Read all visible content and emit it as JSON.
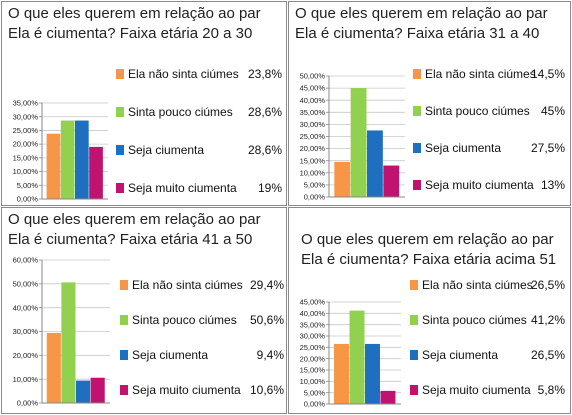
{
  "colors": {
    "ela_nao_sinta": "#f79646",
    "sinta_pouco": "#92d050",
    "seja_ciumenta": "#1f6fc0",
    "seja_muito": "#c0136f",
    "grid": "#c8c8c8",
    "axis": "#888888"
  },
  "chart_data": [
    {
      "type": "bar",
      "title": "O que eles querem em relação ao par\nEla é ciumenta? Faixa etária 20 a 30",
      "ylim": [
        0,
        35
      ],
      "yticks": [
        "0,00%",
        "5,00%",
        "10,00%",
        "15,00%",
        "20,00%",
        "25,00%",
        "30,00%",
        "35,00%"
      ],
      "grid": true,
      "legend_position": "right",
      "series": [
        {
          "name": "Ela não sinta ciúmes",
          "values": [
            23.8
          ],
          "label": "23,8%"
        },
        {
          "name": "Sinta pouco ciúmes",
          "values": [
            28.6
          ],
          "label": "28,6%"
        },
        {
          "name": "Seja ciumenta",
          "values": [
            28.6
          ],
          "label": "28,6%"
        },
        {
          "name": "Seja muito ciumenta",
          "values": [
            19
          ],
          "label": "19%"
        }
      ]
    },
    {
      "type": "bar",
      "title": "O que eles querem em relação ao par\nEla é ciumenta? Faixa etária 31 a 40",
      "ylim": [
        0,
        50
      ],
      "yticks": [
        "0,00%",
        "5,00%",
        "10,00%",
        "15,00%",
        "20,00%",
        "25,00%",
        "30,00%",
        "35,00%",
        "40,00%",
        "45,00%",
        "50,00%"
      ],
      "grid": true,
      "legend_position": "right",
      "series": [
        {
          "name": "Ela não sinta ciúmes",
          "values": [
            14.5
          ],
          "label": "14,5%"
        },
        {
          "name": "Sinta pouco ciúmes",
          "values": [
            45
          ],
          "label": "45%"
        },
        {
          "name": "Seja ciumenta",
          "values": [
            27.5
          ],
          "label": "27,5%"
        },
        {
          "name": "Seja muito ciumenta",
          "values": [
            13
          ],
          "label": "13%"
        }
      ]
    },
    {
      "type": "bar",
      "title": "O que eles querem em relação ao par\nEla é ciumenta? Faixa etária 41 a 50",
      "ylim": [
        0,
        60
      ],
      "yticks": [
        "0,00%",
        "10,00%",
        "20,00%",
        "30,00%",
        "40,00%",
        "50,00%",
        "60,00%"
      ],
      "grid": true,
      "legend_position": "right",
      "series": [
        {
          "name": "Ela não sinta ciúmes",
          "values": [
            29.4
          ],
          "label": "29,4%"
        },
        {
          "name": "Sinta pouco ciúmes",
          "values": [
            50.6
          ],
          "label": "50,6%"
        },
        {
          "name": "Seja ciumenta",
          "values": [
            9.4
          ],
          "label": "9,4%"
        },
        {
          "name": "Seja muito ciumenta",
          "values": [
            10.6
          ],
          "label": "10,6%"
        }
      ]
    },
    {
      "type": "bar",
      "title": "O que eles querem em relação ao par\nEla é ciumenta? Faixa etária acima 51",
      "ylim": [
        0,
        45
      ],
      "yticks": [
        "0,00%",
        "5,00%",
        "10,00%",
        "15,00%",
        "20,00%",
        "25,00%",
        "30,00%",
        "35,00%",
        "40,00%",
        "45,00%"
      ],
      "grid": true,
      "legend_position": "right",
      "series": [
        {
          "name": "Ela não sinta ciúmes",
          "values": [
            26.5
          ],
          "label": "26,5%"
        },
        {
          "name": "Sinta pouco ciúmes",
          "values": [
            41.2
          ],
          "label": "41,2%"
        },
        {
          "name": "Seja ciumenta",
          "values": [
            26.5
          ],
          "label": "26,5%"
        },
        {
          "name": "Seja muito ciumenta",
          "values": [
            5.8
          ],
          "label": "5,8%"
        }
      ]
    }
  ]
}
